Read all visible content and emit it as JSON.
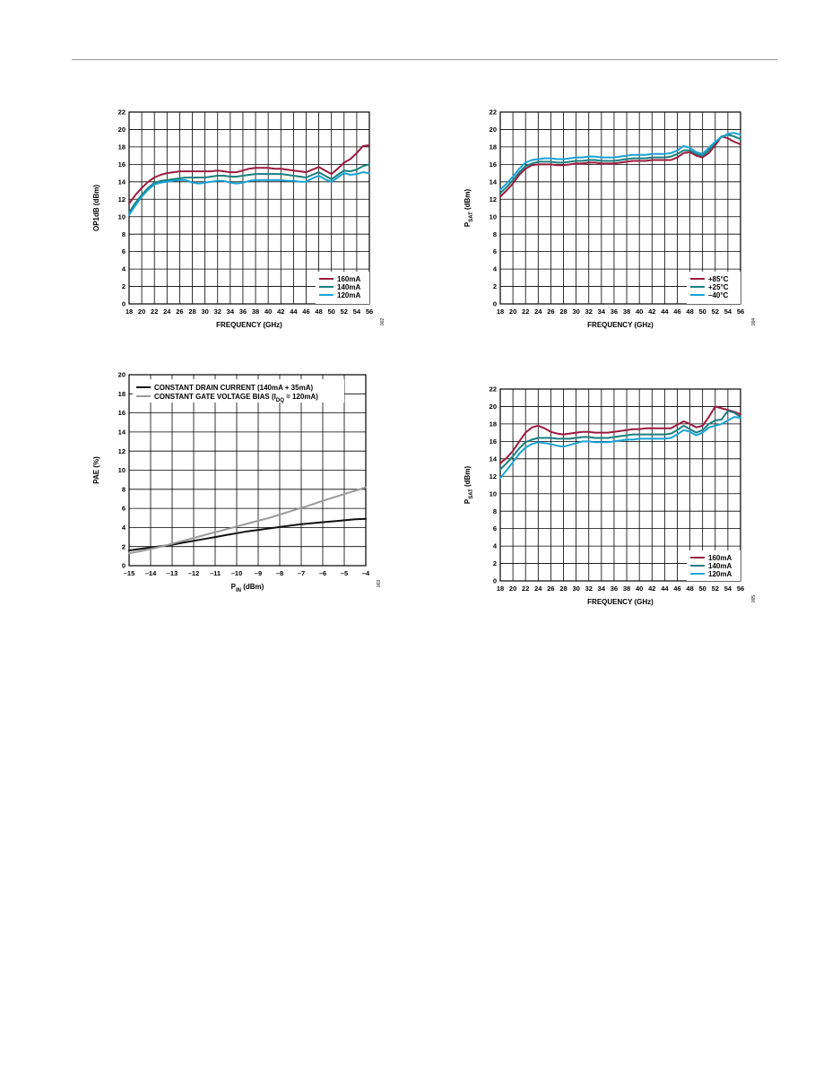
{
  "page": {
    "header_rule": true
  },
  "colors": {
    "grid": "#000000",
    "crimson": "#9B1B3F",
    "teal": "#1B7F7F",
    "cyan": "#1AA3D6",
    "black": "#111111",
    "gray": "#9A9A9A"
  },
  "chart_data": [
    {
      "id": "op1db",
      "type": "line",
      "xlabel": "FREQUENCY (GHz)",
      "ylabel": "OP1dB (dBm)",
      "xlim": [
        18,
        56
      ],
      "ylim": [
        0,
        22
      ],
      "x_ticks": [
        18,
        20,
        22,
        24,
        26,
        28,
        30,
        32,
        34,
        36,
        38,
        40,
        42,
        44,
        46,
        48,
        50,
        52,
        54,
        56
      ],
      "y_ticks": [
        0,
        2,
        4,
        6,
        8,
        10,
        12,
        14,
        16,
        18,
        20,
        22
      ],
      "grid": true,
      "legend_position": "bottom-right",
      "fig_code": "002",
      "x": [
        18,
        19,
        20,
        21,
        22,
        23,
        24,
        25,
        26,
        27,
        28,
        29,
        30,
        31,
        32,
        33,
        34,
        35,
        36,
        37,
        38,
        39,
        40,
        41,
        42,
        43,
        44,
        45,
        46,
        47,
        48,
        49,
        50,
        51,
        52,
        53,
        54,
        55,
        56
      ],
      "series": [
        {
          "name": "160mA",
          "color": "#9B1B3F",
          "values": [
            11.5,
            12.5,
            13.3,
            14.0,
            14.5,
            14.8,
            15.0,
            15.1,
            15.2,
            15.2,
            15.2,
            15.2,
            15.2,
            15.2,
            15.3,
            15.2,
            15.1,
            15.1,
            15.3,
            15.5,
            15.6,
            15.6,
            15.6,
            15.5,
            15.5,
            15.4,
            15.3,
            15.2,
            15.1,
            15.4,
            15.7,
            15.3,
            14.9,
            15.5,
            16.2,
            16.6,
            17.3,
            18.1,
            18.2
          ]
        },
        {
          "name": "140mA",
          "color": "#1B7F7F",
          "values": [
            10.5,
            11.6,
            12.5,
            13.3,
            13.9,
            14.1,
            14.2,
            14.3,
            14.4,
            14.5,
            14.5,
            14.5,
            14.5,
            14.6,
            14.7,
            14.7,
            14.6,
            14.6,
            14.7,
            14.8,
            14.9,
            14.9,
            14.9,
            14.9,
            14.9,
            14.8,
            14.7,
            14.6,
            14.5,
            14.8,
            15.1,
            14.7,
            14.3,
            14.8,
            15.3,
            15.2,
            15.4,
            15.8,
            16.0
          ]
        },
        {
          "name": "120mA",
          "color": "#1AA3D6",
          "values": [
            10.2,
            11.3,
            12.3,
            13.1,
            13.7,
            13.9,
            14.0,
            14.1,
            14.2,
            14.2,
            13.9,
            13.8,
            13.9,
            14.0,
            14.1,
            14.1,
            13.9,
            13.8,
            13.9,
            14.1,
            14.2,
            14.2,
            14.2,
            14.2,
            14.2,
            14.1,
            14.1,
            14.0,
            14.0,
            14.4,
            14.7,
            14.3,
            14.0,
            14.5,
            15.0,
            14.8,
            14.9,
            15.1,
            15.0
          ]
        }
      ]
    },
    {
      "id": "psat-temp",
      "type": "line",
      "xlabel": "FREQUENCY (GHz)",
      "ylabel_main": "P",
      "ylabel_sub": "SAT",
      "ylabel_rest": " (dBm)",
      "xlim": [
        18,
        56
      ],
      "ylim": [
        0,
        22
      ],
      "x_ticks": [
        18,
        20,
        22,
        24,
        26,
        28,
        30,
        32,
        34,
        36,
        38,
        40,
        42,
        44,
        46,
        48,
        50,
        52,
        54,
        56
      ],
      "y_ticks": [
        0,
        2,
        4,
        6,
        8,
        10,
        12,
        14,
        16,
        18,
        20,
        22
      ],
      "grid": true,
      "legend_position": "bottom-right",
      "fig_code": "004",
      "x": [
        18,
        19,
        20,
        21,
        22,
        23,
        24,
        25,
        26,
        27,
        28,
        29,
        30,
        31,
        32,
        33,
        34,
        35,
        36,
        37,
        38,
        39,
        40,
        41,
        42,
        43,
        44,
        45,
        46,
        47,
        48,
        49,
        50,
        51,
        52,
        53,
        54,
        55,
        56
      ],
      "series": [
        {
          "name": "+85°C",
          "color": "#9B1B3F",
          "values": [
            12.3,
            13.0,
            13.8,
            14.8,
            15.5,
            15.9,
            16.0,
            16.0,
            16.0,
            15.9,
            15.9,
            16.0,
            16.1,
            16.1,
            16.2,
            16.2,
            16.1,
            16.1,
            16.1,
            16.2,
            16.3,
            16.4,
            16.4,
            16.4,
            16.5,
            16.5,
            16.5,
            16.5,
            16.8,
            17.3,
            17.4,
            17.0,
            16.8,
            17.3,
            18.2,
            19.2,
            19.0,
            18.6,
            18.3
          ]
        },
        {
          "name": "+25°C",
          "color": "#1B7F7F",
          "values": [
            12.7,
            13.4,
            14.2,
            15.1,
            15.8,
            16.1,
            16.3,
            16.3,
            16.3,
            16.2,
            16.2,
            16.3,
            16.4,
            16.4,
            16.5,
            16.5,
            16.4,
            16.4,
            16.4,
            16.5,
            16.6,
            16.7,
            16.7,
            16.7,
            16.8,
            16.8,
            16.8,
            16.9,
            17.2,
            17.6,
            17.6,
            17.2,
            17.0,
            17.6,
            18.5,
            19.2,
            19.4,
            19.2,
            18.9
          ]
        },
        {
          "name": "–40°C",
          "color": "#1AA3D6",
          "values": [
            13.1,
            13.8,
            14.6,
            15.5,
            16.2,
            16.5,
            16.6,
            16.7,
            16.7,
            16.6,
            16.6,
            16.7,
            16.8,
            16.8,
            16.9,
            16.9,
            16.8,
            16.8,
            16.8,
            16.9,
            17.0,
            17.1,
            17.1,
            17.1,
            17.2,
            17.2,
            17.2,
            17.3,
            17.6,
            18.1,
            17.9,
            17.4,
            17.2,
            17.9,
            18.6,
            19.1,
            19.5,
            19.6,
            19.4
          ]
        }
      ]
    },
    {
      "id": "pae",
      "type": "line",
      "xlabel_main": "P",
      "xlabel_sub": "IN",
      "xlabel_rest": " (dBm)",
      "ylabel": "PAE (%)",
      "xlim": [
        -15,
        -4
      ],
      "ylim": [
        0,
        20
      ],
      "x_ticks": [
        -15,
        -14,
        -13,
        -12,
        -11,
        -10,
        -9,
        -8,
        -7,
        -6,
        -5,
        -4
      ],
      "x_tick_labels": [
        "–15",
        "–14",
        "–13",
        "–12",
        "–11",
        "–10",
        "–9",
        "–8",
        "–7",
        "–6",
        "–5",
        "–4"
      ],
      "y_ticks": [
        0,
        2,
        4,
        6,
        8,
        10,
        12,
        14,
        16,
        18,
        20
      ],
      "grid": true,
      "legend_position": "top-left",
      "fig_code": "003",
      "x": [
        -15,
        -14.5,
        -14,
        -13.5,
        -13,
        -12.5,
        -12,
        -11.5,
        -11,
        -10.5,
        -10,
        -9.5,
        -9,
        -8.5,
        -8,
        -7.5,
        -7,
        -6.5,
        -6,
        -5.5,
        -5,
        -4.5,
        -4
      ],
      "series": [
        {
          "name": "CONSTANT DRAIN CURRENT (140mA + 35mA)",
          "color": "#111111",
          "values": [
            1.6,
            1.75,
            1.9,
            2.05,
            2.2,
            2.4,
            2.6,
            2.8,
            3.0,
            3.2,
            3.4,
            3.6,
            3.75,
            3.9,
            4.05,
            4.2,
            4.35,
            4.45,
            4.55,
            4.65,
            4.75,
            4.85,
            4.9
          ]
        },
        {
          "name_main": "CONSTANT GATE VOLTAGE BIAS (I",
          "name_sub": "DQ",
          "name_rest": " = 120mA)",
          "color": "#9A9A9A",
          "values": [
            1.3,
            1.5,
            1.75,
            2.0,
            2.3,
            2.6,
            2.9,
            3.2,
            3.5,
            3.8,
            4.1,
            4.4,
            4.7,
            5.0,
            5.35,
            5.7,
            6.05,
            6.4,
            6.8,
            7.15,
            7.5,
            7.85,
            8.2
          ]
        }
      ]
    },
    {
      "id": "psat-current",
      "type": "line",
      "xlabel": "FREQUENCY (GHz)",
      "ylabel_main": "P",
      "ylabel_sub": "SAT",
      "ylabel_rest": " (dBm)",
      "xlim": [
        18,
        56
      ],
      "ylim": [
        0,
        22
      ],
      "x_ticks": [
        18,
        20,
        22,
        24,
        26,
        28,
        30,
        32,
        34,
        36,
        38,
        40,
        42,
        44,
        46,
        48,
        50,
        52,
        54,
        56
      ],
      "y_ticks": [
        0,
        2,
        4,
        6,
        8,
        10,
        12,
        14,
        16,
        18,
        20,
        22
      ],
      "grid": true,
      "legend_position": "bottom-right",
      "fig_code": "005",
      "x": [
        18,
        19,
        20,
        21,
        22,
        23,
        24,
        25,
        26,
        27,
        28,
        29,
        30,
        31,
        32,
        33,
        34,
        35,
        36,
        37,
        38,
        39,
        40,
        41,
        42,
        43,
        44,
        45,
        46,
        47,
        48,
        49,
        50,
        51,
        52,
        53,
        54,
        55,
        56
      ],
      "series": [
        {
          "name": "160mA",
          "color": "#9B1B3F",
          "values": [
            13.5,
            14.1,
            14.9,
            16.0,
            17.0,
            17.6,
            17.8,
            17.5,
            17.1,
            16.9,
            16.8,
            16.9,
            17.0,
            17.1,
            17.1,
            17.0,
            17.0,
            17.0,
            17.1,
            17.2,
            17.3,
            17.4,
            17.4,
            17.5,
            17.5,
            17.5,
            17.5,
            17.5,
            17.9,
            18.3,
            18.0,
            17.6,
            17.8,
            18.8,
            20.0,
            19.8,
            19.6,
            19.4,
            19.1
          ]
        },
        {
          "name": "140mA",
          "color": "#1B7F7F",
          "values": [
            12.8,
            13.5,
            14.3,
            15.2,
            15.9,
            16.2,
            16.4,
            16.4,
            16.4,
            16.3,
            16.3,
            16.3,
            16.4,
            16.5,
            16.5,
            16.4,
            16.4,
            16.4,
            16.5,
            16.6,
            16.7,
            16.8,
            16.8,
            16.8,
            16.8,
            16.8,
            16.8,
            16.9,
            17.3,
            17.8,
            17.4,
            17.0,
            17.3,
            18.0,
            18.4,
            18.5,
            19.5,
            19.3,
            18.8
          ]
        },
        {
          "name": "120mA",
          "color": "#1AA3D6",
          "values": [
            11.8,
            12.7,
            13.6,
            14.6,
            15.3,
            15.7,
            15.9,
            15.8,
            15.7,
            15.5,
            15.4,
            15.6,
            15.8,
            16.0,
            16.0,
            15.9,
            15.9,
            15.9,
            16.0,
            16.1,
            16.2,
            16.2,
            16.3,
            16.3,
            16.3,
            16.3,
            16.3,
            16.4,
            16.8,
            17.3,
            17.1,
            16.7,
            17.0,
            17.6,
            17.8,
            18.0,
            18.4,
            18.8,
            18.7
          ]
        }
      ]
    }
  ]
}
